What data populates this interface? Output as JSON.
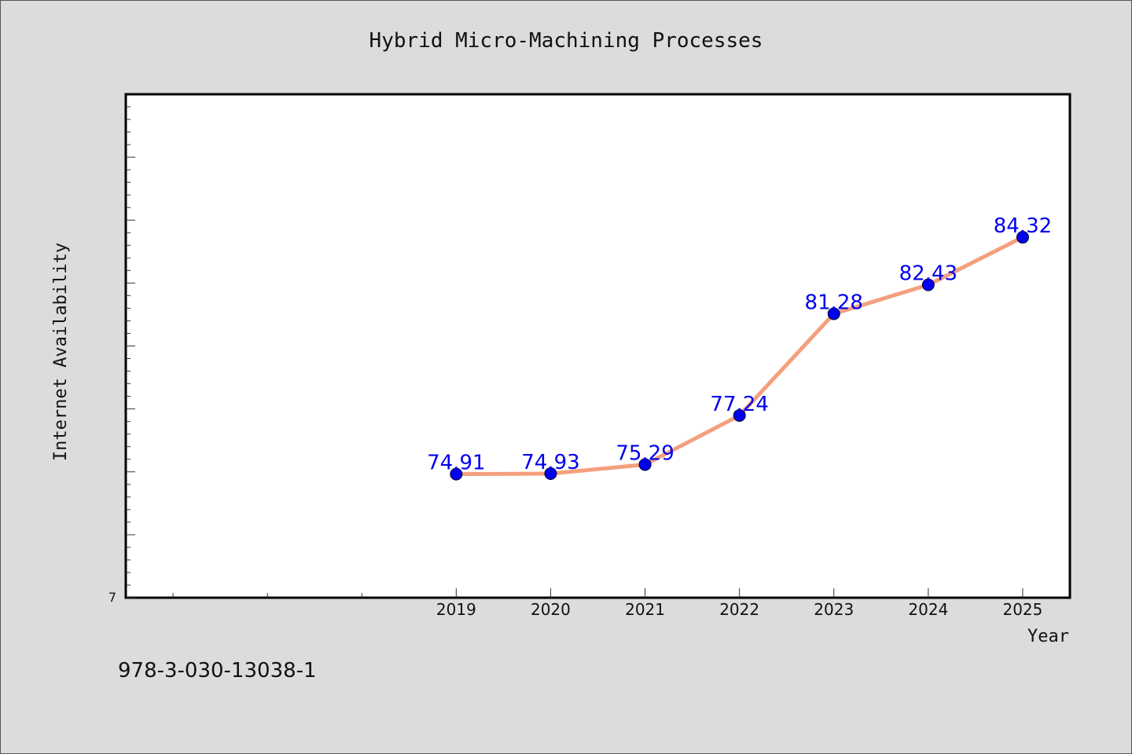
{
  "chart_data": {
    "type": "line",
    "title": "Hybrid Micro-Machining Processes",
    "xlabel": "Year",
    "ylabel": "Internet Availability",
    "footer": "978-3-030-13038-1",
    "y_tick_label": "7",
    "x": [
      2019,
      2020,
      2021,
      2022,
      2023,
      2024,
      2025
    ],
    "series": [
      {
        "values": [
          74.91,
          74.93,
          75.29,
          77.24,
          81.28,
          82.43,
          84.32
        ],
        "labels": [
          "74.91",
          "74.93",
          "75.29",
          "77.24",
          "81.28",
          "82.43",
          "84.32"
        ]
      }
    ],
    "xlim": [
      2015.5,
      2025.5
    ],
    "ylim": [
      70,
      90
    ],
    "grid": false,
    "colors": {
      "line": "#f4a07e",
      "marker": "#0000ee",
      "label": "#0000ee",
      "background": "#dcdcdc",
      "plot_background": "#ffffff"
    }
  }
}
